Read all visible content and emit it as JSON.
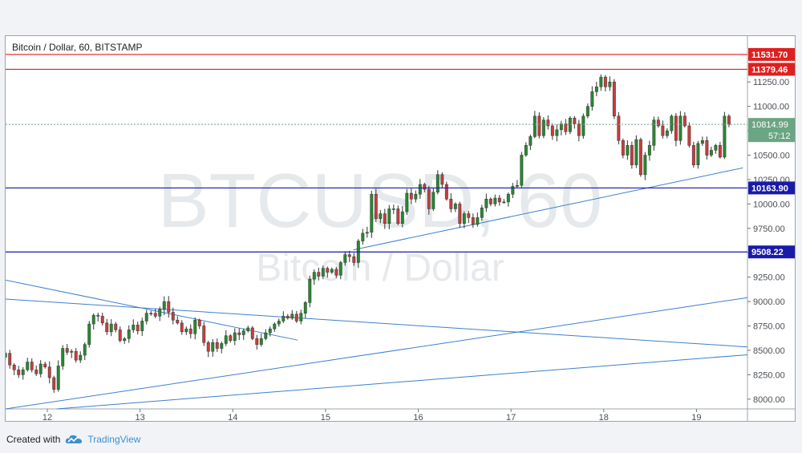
{
  "chart_data": {
    "type": "candlestick",
    "title": "Bitcoin / Dollar, 60, BITSTAMP",
    "watermark": {
      "symbol": "BTCUSD, 60",
      "description": "Bitcoin / Dollar"
    },
    "x_ticks": [
      "12",
      "13",
      "14",
      "15",
      "16",
      "17",
      "18",
      "19"
    ],
    "y_ticks": [
      "8000.00",
      "8250.00",
      "8500.00",
      "8750.00",
      "9000.00",
      "9250.00",
      "9500.00",
      "9750.00",
      "10000.00",
      "10250.00",
      "10500.00",
      "10750.00",
      "11000.00",
      "11250.00"
    ],
    "ylim": [
      7900,
      11720
    ],
    "xlim": [
      11.55,
      19.55
    ],
    "last_price": {
      "value": "10814.99",
      "countdown": "57:12",
      "color": "#6ba583"
    },
    "horizontal_levels": [
      {
        "value": 11531.7,
        "label": "11531.70",
        "color": "#e01f1f"
      },
      {
        "value": 11379.46,
        "label": "11379.46",
        "color": "#e01f1f"
      },
      {
        "value": 10163.9,
        "label": "10163.90",
        "color": "#1a1aa8"
      },
      {
        "value": 9508.22,
        "label": "9508.22",
        "color": "#1a1aa8"
      }
    ],
    "trend_lines": [
      {
        "from": [
          11.55,
          9220
        ],
        "to": [
          14.7,
          8605
        ]
      },
      {
        "from": [
          11.55,
          9025
        ],
        "to": [
          19.55,
          8535
        ]
      },
      {
        "from": [
          11.55,
          7900
        ],
        "to": [
          19.55,
          9040
        ]
      },
      {
        "from": [
          12.1,
          7900
        ],
        "to": [
          19.55,
          8455
        ]
      },
      {
        "from": [
          15.3,
          9530
        ],
        "to": [
          19.5,
          10370
        ]
      }
    ],
    "candle_colors": {
      "up": "#26892f",
      "down": "#c93c3c"
    },
    "candles_close": [
      8430,
      8470,
      8350,
      8300,
      8250,
      8300,
      8380,
      8300,
      8260,
      8360,
      8330,
      8220,
      8100,
      8340,
      8520,
      8480,
      8490,
      8400,
      8450,
      8560,
      8770,
      8860,
      8850,
      8780,
      8690,
      8770,
      8710,
      8600,
      8620,
      8710,
      8760,
      8700,
      8800,
      8880,
      8880,
      8850,
      8920,
      9000,
      8890,
      8810,
      8780,
      8690,
      8720,
      8670,
      8810,
      8750,
      8580,
      8490,
      8580,
      8520,
      8570,
      8650,
      8600,
      8680,
      8660,
      8700,
      8730,
      8620,
      8560,
      8620,
      8680,
      8720,
      8770,
      8800,
      8850,
      8830,
      8870,
      8800,
      8880,
      8990,
      9230,
      9300,
      9260,
      9340,
      9300,
      9330,
      9270,
      9400,
      9480,
      9460,
      9400,
      9620,
      9700,
      9710,
      10100,
      9850,
      9900,
      9800,
      9950,
      9950,
      9800,
      9920,
      10110,
      10050,
      10100,
      10200,
      10150,
      9950,
      10120,
      10300,
      10200,
      10050,
      9950,
      10000,
      9800,
      9900,
      9860,
      9790,
      9860,
      9960,
      10050,
      10000,
      10060,
      10020,
      10020,
      10100,
      10180,
      10190,
      10500,
      10600,
      10690,
      10900,
      10700,
      10860,
      10800,
      10700,
      10760,
      10820,
      10740,
      10880,
      10820,
      10700,
      10900,
      11000,
      11150,
      11200,
      11300,
      11200,
      11250,
      10900,
      10650,
      10500,
      10600,
      10400,
      10660,
      10300,
      10500,
      10600,
      10860,
      10800,
      10700,
      10750,
      10900,
      10650,
      10900,
      10800,
      10600,
      10400,
      10620,
      10650,
      10500,
      10550,
      10600,
      10480,
      10900,
      10814.99
    ]
  },
  "footer": {
    "created_with": "Created with",
    "brand": "TradingView"
  }
}
